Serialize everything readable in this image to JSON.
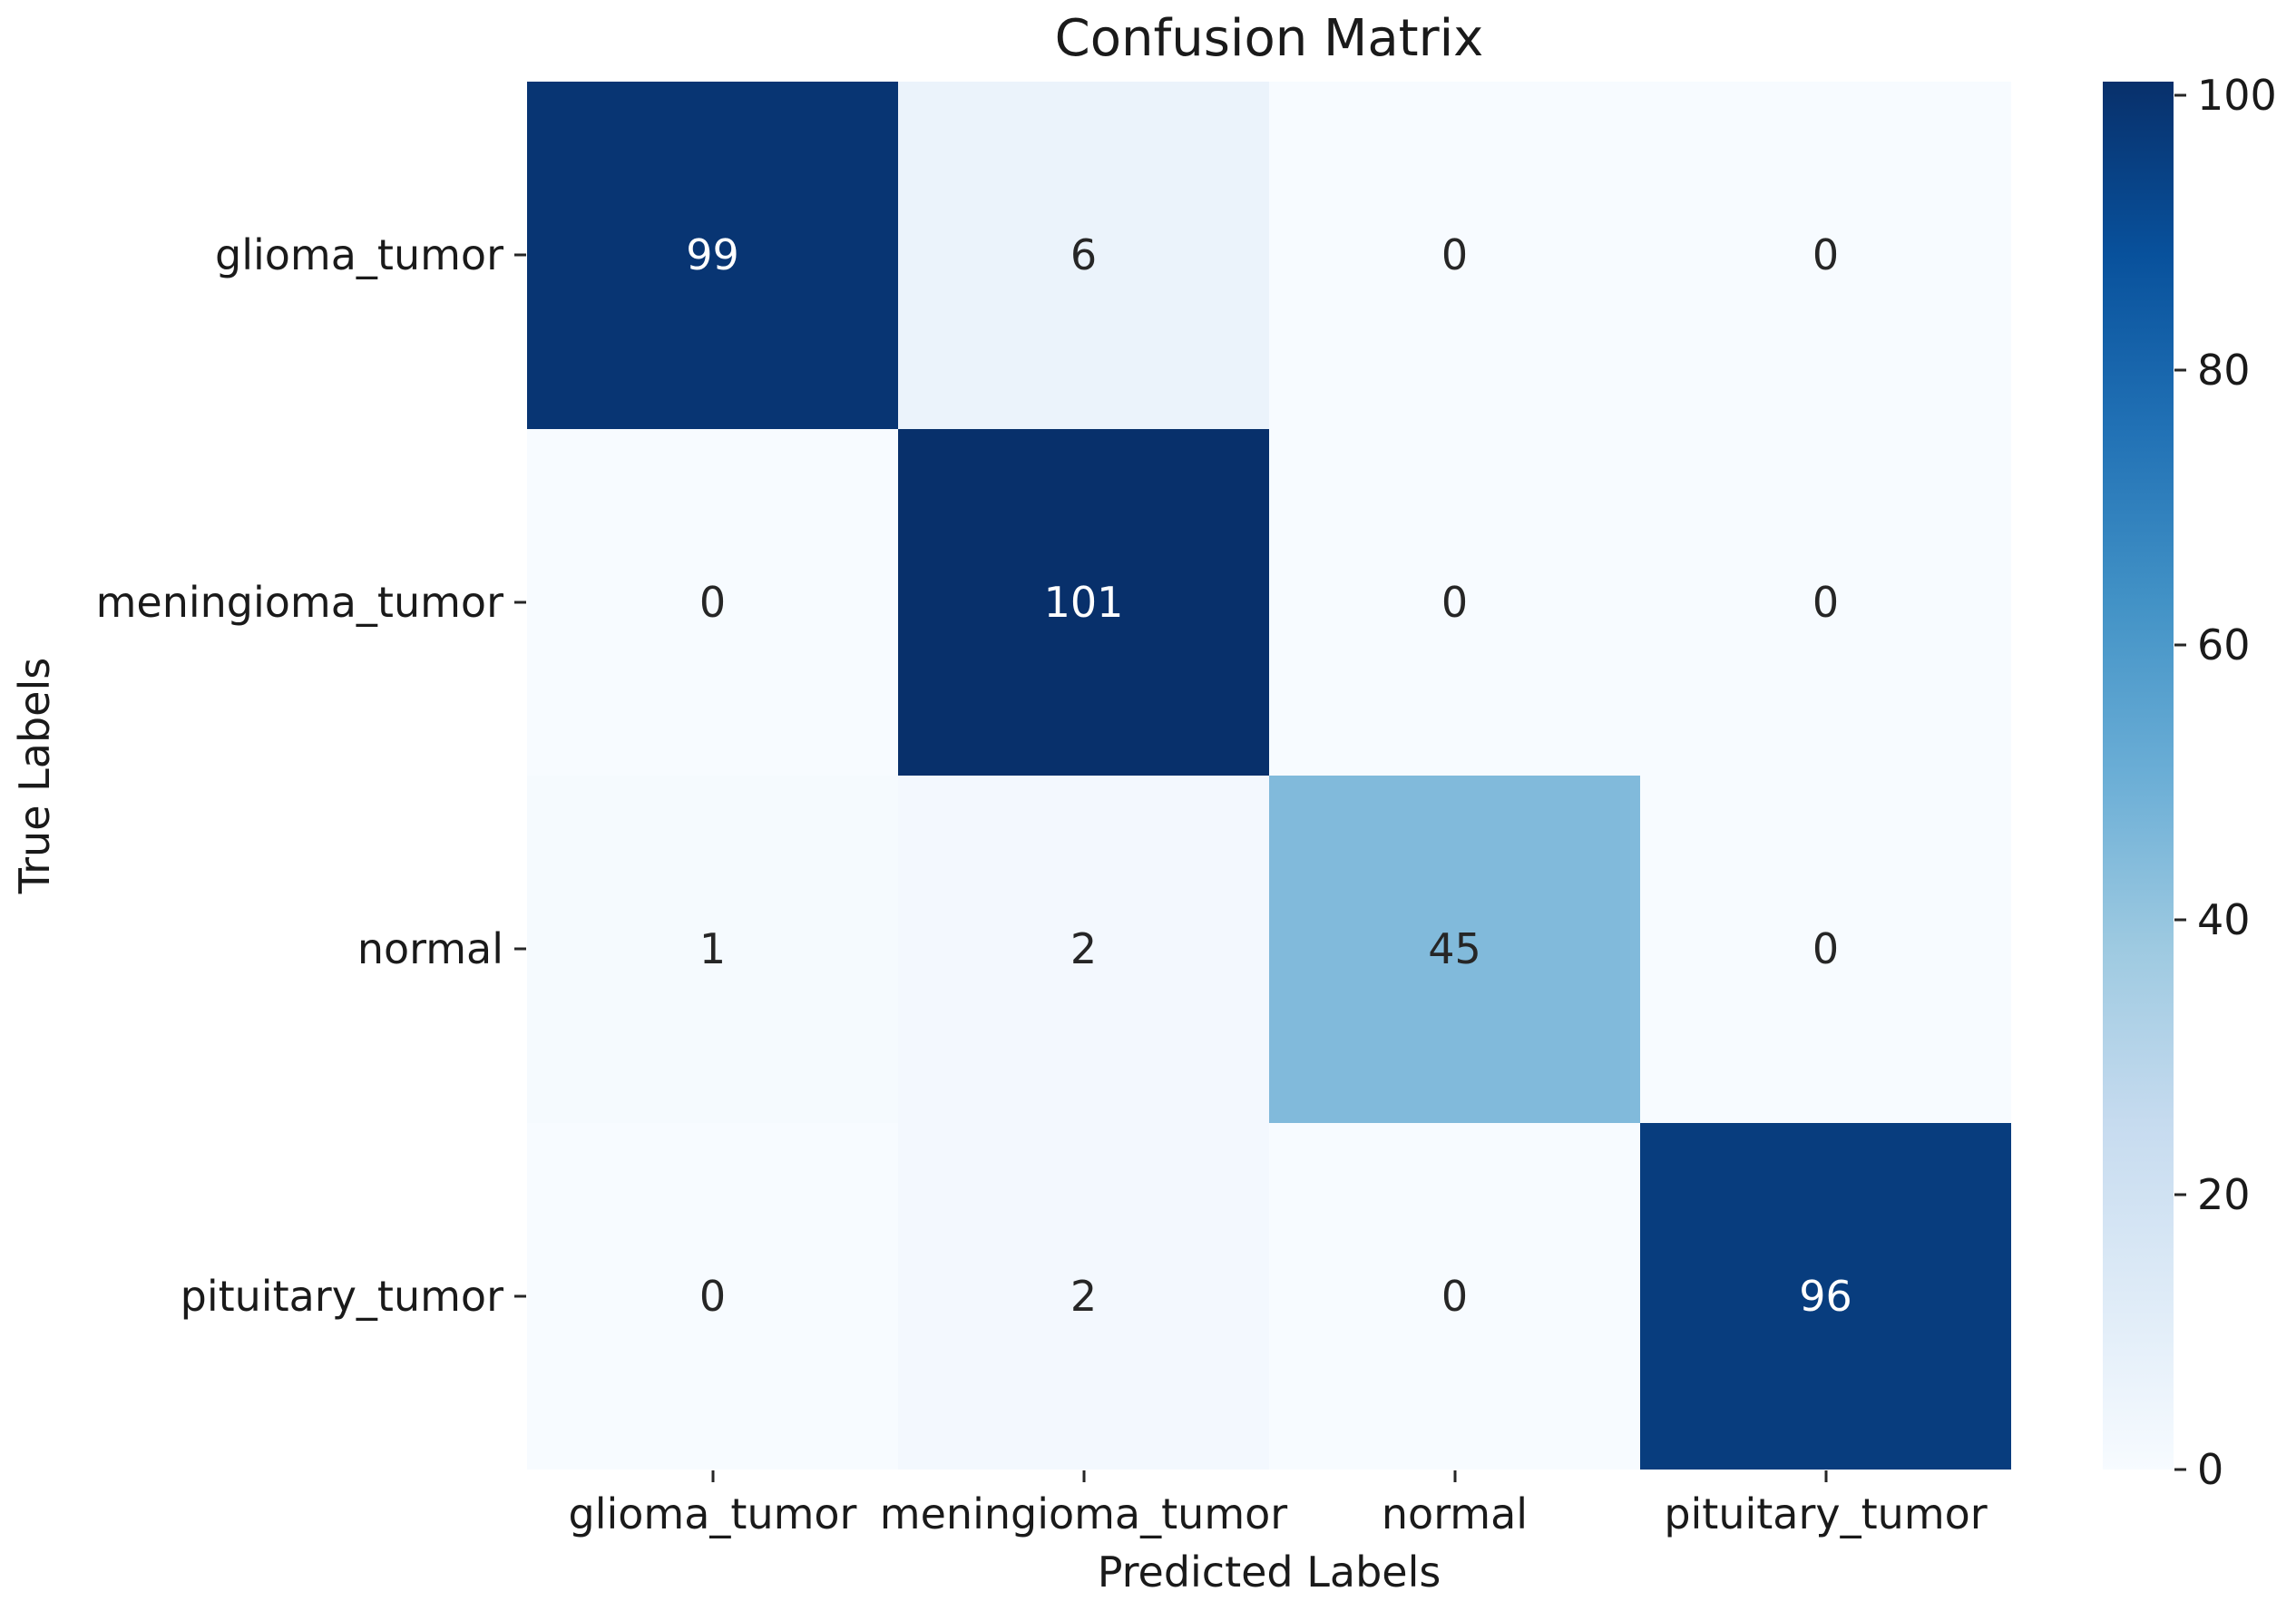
{
  "figure": {
    "background": "#ffffff",
    "text_color": "#1a1a1a"
  },
  "chart_data": {
    "type": "heatmap",
    "title": "Confusion Matrix",
    "xlabel": "Predicted Labels",
    "ylabel": "True Labels",
    "x_categories": [
      "glioma_tumor",
      "meningioma_tumor",
      "normal",
      "pituitary_tumor"
    ],
    "y_categories": [
      "glioma_tumor",
      "meningioma_tumor",
      "normal",
      "pituitary_tumor"
    ],
    "matrix": [
      [
        99,
        6,
        0,
        0
      ],
      [
        0,
        101,
        0,
        0
      ],
      [
        1,
        2,
        45,
        0
      ],
      [
        0,
        2,
        0,
        96
      ]
    ],
    "vmin": 0,
    "vmax": 101,
    "colorbar_ticks": [
      0,
      20,
      40,
      60,
      80,
      100
    ],
    "colormap": "Blues",
    "colormap_stops": [
      "#f7fbff",
      "#deebf7",
      "#c6dbef",
      "#9ecae1",
      "#6baed6",
      "#4292c6",
      "#2171b5",
      "#08519c",
      "#08306b"
    ],
    "annotation_text_dark": "#262626",
    "annotation_text_light": "#ffffff",
    "legend_position": "right-colorbar",
    "grid": false
  }
}
